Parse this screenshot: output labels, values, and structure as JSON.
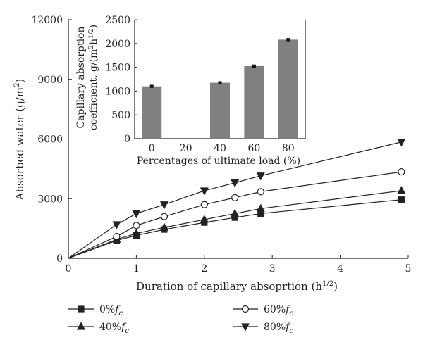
{
  "chart_data": [
    {
      "type": "line",
      "xlabel": "Duration of capillary absoprtion (h",
      "xlabel_sup": "1/2",
      "xlabel_close": ")",
      "ylabel": "Absorbed water (g/m",
      "ylabel_sup": "2",
      "ylabel_close": ")",
      "xlim": [
        0,
        5
      ],
      "ylim": [
        0,
        12000
      ],
      "xticks": [
        "0",
        "1",
        "2",
        "3",
        "4",
        "5"
      ],
      "yticks": [
        "0",
        "3000",
        "6000",
        "9000",
        "12000"
      ],
      "legend_position": "bottom",
      "series": [
        {
          "name": "0%",
          "name_sub": "f",
          "name_subsub": "c",
          "marker": "square",
          "x": [
            0,
            0.71,
            1.0,
            1.41,
            2.0,
            2.45,
            2.83,
            4.9
          ],
          "y": [
            0,
            900,
            1150,
            1450,
            1800,
            2050,
            2250,
            2950
          ]
        },
        {
          "name": "40%",
          "name_sub": "f",
          "name_subsub": "c",
          "marker": "triangle-up",
          "x": [
            0,
            0.71,
            1.0,
            1.41,
            2.0,
            2.45,
            2.83,
            4.9
          ],
          "y": [
            0,
            950,
            1250,
            1550,
            1950,
            2250,
            2500,
            3400
          ]
        },
        {
          "name": "60%",
          "name_sub": "f",
          "name_subsub": "c",
          "marker": "circle",
          "x": [
            0,
            0.71,
            1.0,
            1.41,
            2.0,
            2.45,
            2.83,
            4.9
          ],
          "y": [
            0,
            1100,
            1650,
            2100,
            2700,
            3050,
            3350,
            4350
          ]
        },
        {
          "name": "80%",
          "name_sub": "f",
          "name_subsub": "c",
          "marker": "triangle-down",
          "x": [
            0,
            0.71,
            1.0,
            1.41,
            2.0,
            2.45,
            2.83,
            4.9
          ],
          "y": [
            0,
            1700,
            2250,
            2700,
            3400,
            3800,
            4150,
            5850
          ]
        }
      ]
    },
    {
      "type": "bar",
      "xlabel": "Percentages of ultimate load (%)",
      "ylabel_line1": "Capillary absorption",
      "ylabel_line2": "coefficient, g/(m",
      "ylabel_sup1": "2",
      "ylabel_mid": "h",
      "ylabel_sup2": "1/2",
      "ylabel_close": ")",
      "categories": [
        "0",
        "20",
        "40",
        "60",
        "80"
      ],
      "values": [
        1100,
        null,
        1175,
        1525,
        2080
      ],
      "errors": [
        25,
        null,
        25,
        25,
        25
      ],
      "ylim": [
        0,
        2500
      ],
      "yticks": [
        "0",
        "500",
        "1000",
        "1500",
        "2000",
        "2500"
      ],
      "bar_color": "#808080"
    }
  ]
}
